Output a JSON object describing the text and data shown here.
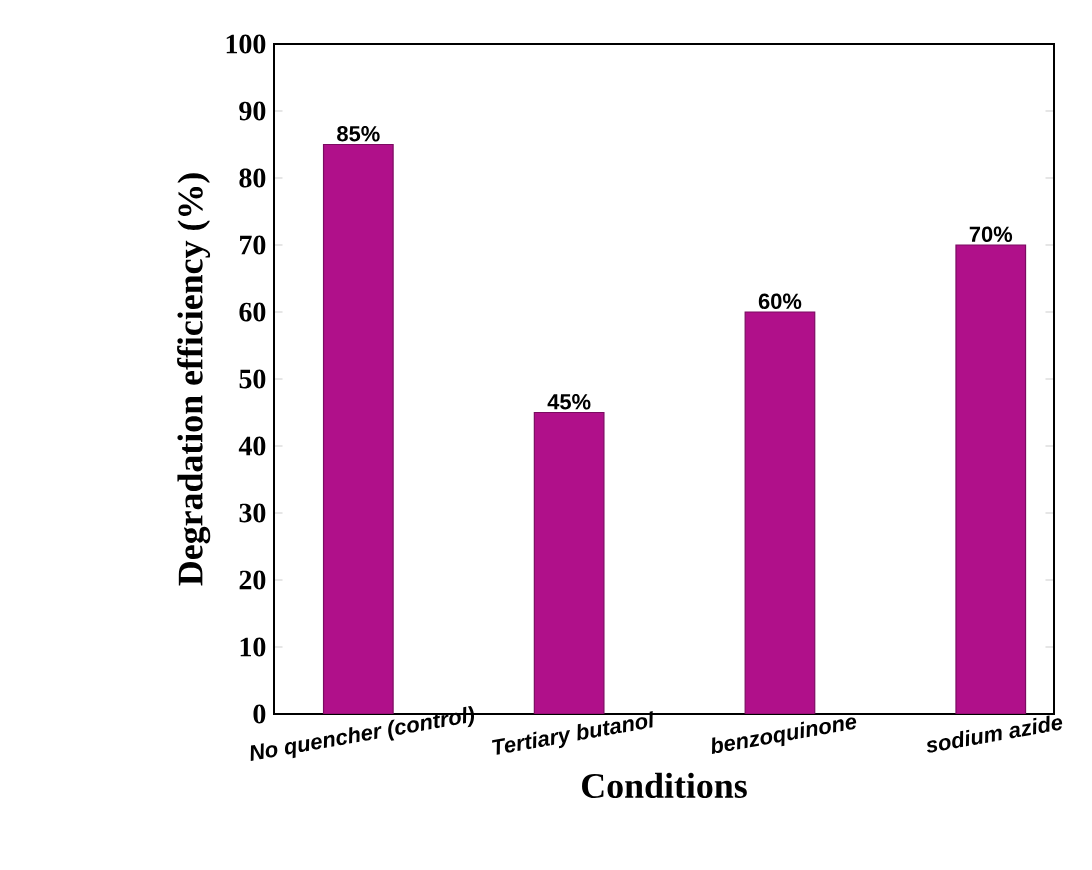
{
  "chart_data": {
    "type": "bar",
    "xlabel": "Conditions",
    "ylabel": "Degradation efficiency (%)",
    "categories": [
      "No quencher (control)",
      "Tertiary butanol",
      "benzoquinone",
      "sodium azide"
    ],
    "values": [
      85,
      45,
      60,
      70
    ],
    "value_labels": [
      "85%",
      "45%",
      "60%",
      "70%"
    ],
    "color": "#b0108a",
    "ylim": [
      0,
      100
    ],
    "yticks": [
      0,
      10,
      20,
      30,
      40,
      50,
      60,
      70,
      80,
      90,
      100
    ],
    "grid": false
  }
}
